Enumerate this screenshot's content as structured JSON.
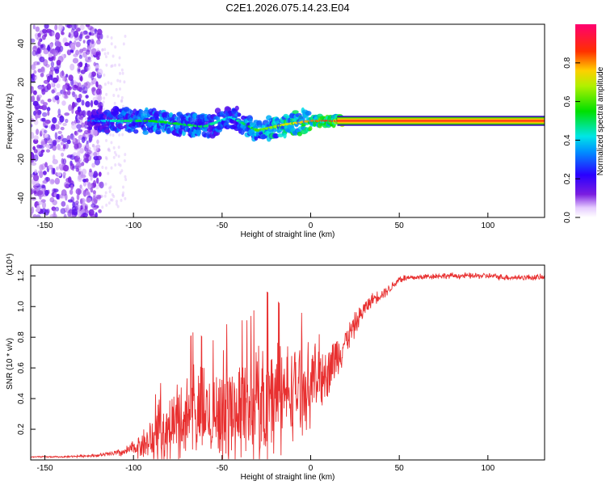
{
  "title": "C2E1.2026.075.14.23.E04",
  "chart_data": [
    {
      "type": "heatmap",
      "xlabel": "Height of straight line (km)",
      "ylabel": "Frequency (Hz)",
      "xlim": [
        -158,
        132
      ],
      "ylim": [
        -50,
        50
      ],
      "xticks": [
        -150,
        -100,
        -50,
        0,
        50,
        100
      ],
      "yticks": [
        -40,
        -20,
        0,
        20,
        40
      ],
      "colorbar": {
        "label": "Normalized spectral amplitude",
        "range": [
          0,
          1
        ],
        "ticks": [
          0.0,
          0.2,
          0.4,
          0.6,
          0.8
        ],
        "colormap": "rainbow (white, purple, blue, cyan, green, yellow, red, magenta)"
      },
      "description_points": [
        {
          "x": -140,
          "y": 0,
          "amplitude": 0.12
        },
        {
          "x": -110,
          "y": 0,
          "amplitude": 0.45
        },
        {
          "x": -90,
          "y": 0,
          "amplitude": 0.55
        },
        {
          "x": -60,
          "y": -3,
          "amplitude": 0.5
        },
        {
          "x": -45,
          "y": 2,
          "amplitude": 0.4
        },
        {
          "x": -30,
          "y": -5,
          "amplitude": 0.6
        },
        {
          "x": -15,
          "y": -2,
          "amplitude": 0.7
        },
        {
          "x": 0,
          "y": 0,
          "amplitude": 0.8
        },
        {
          "x": 20,
          "y": 0,
          "amplitude": 0.95
        },
        {
          "x": 131,
          "y": 0,
          "amplitude": 0.95
        }
      ]
    },
    {
      "type": "line",
      "xlabel": "Height of straight line (km)",
      "ylabel": "SNR (10 * v/v)",
      "scale_label": "(x10⁴)",
      "xlim": [
        -158,
        132
      ],
      "ylim": [
        0,
        1.27
      ],
      "xticks": [
        -150,
        -100,
        -50,
        0,
        50,
        100
      ],
      "yticks": [
        0.2,
        0.4,
        0.6,
        0.8,
        1.0,
        1.2
      ],
      "color": "#e83030",
      "x": [
        -158,
        -140,
        -120,
        -105,
        -100,
        -95,
        -90,
        -85,
        -80,
        -75,
        -70,
        -65,
        -60,
        -55,
        -50,
        -45,
        -40,
        -35,
        -30,
        -25,
        -20,
        -15,
        -10,
        -5,
        0,
        5,
        10,
        15,
        20,
        25,
        30,
        35,
        40,
        45,
        50,
        60,
        70,
        80,
        90,
        100,
        110,
        120,
        132
      ],
      "y": [
        0.02,
        0.02,
        0.03,
        0.05,
        0.08,
        0.1,
        0.12,
        0.18,
        0.2,
        0.25,
        0.28,
        0.3,
        0.3,
        0.3,
        0.33,
        0.32,
        0.35,
        0.35,
        0.38,
        0.38,
        0.42,
        0.42,
        0.45,
        0.48,
        0.5,
        0.55,
        0.6,
        0.68,
        0.78,
        0.88,
        0.98,
        1.05,
        1.08,
        1.12,
        1.18,
        1.19,
        1.2,
        1.2,
        1.2,
        1.2,
        1.19,
        1.19,
        1.19
      ],
      "noise_amplitude": [
        0.005,
        0.005,
        0.01,
        0.03,
        0.05,
        0.1,
        0.15,
        0.2,
        0.2,
        0.3,
        0.3,
        0.35,
        0.3,
        0.3,
        0.35,
        0.35,
        0.35,
        0.35,
        0.4,
        0.45,
        0.4,
        0.35,
        0.3,
        0.3,
        0.25,
        0.25,
        0.2,
        0.15,
        0.1,
        0.08,
        0.06,
        0.04,
        0.04,
        0.03,
        0.03,
        0.02,
        0.02,
        0.02,
        0.02,
        0.02,
        0.02,
        0.02,
        0.02
      ]
    }
  ]
}
